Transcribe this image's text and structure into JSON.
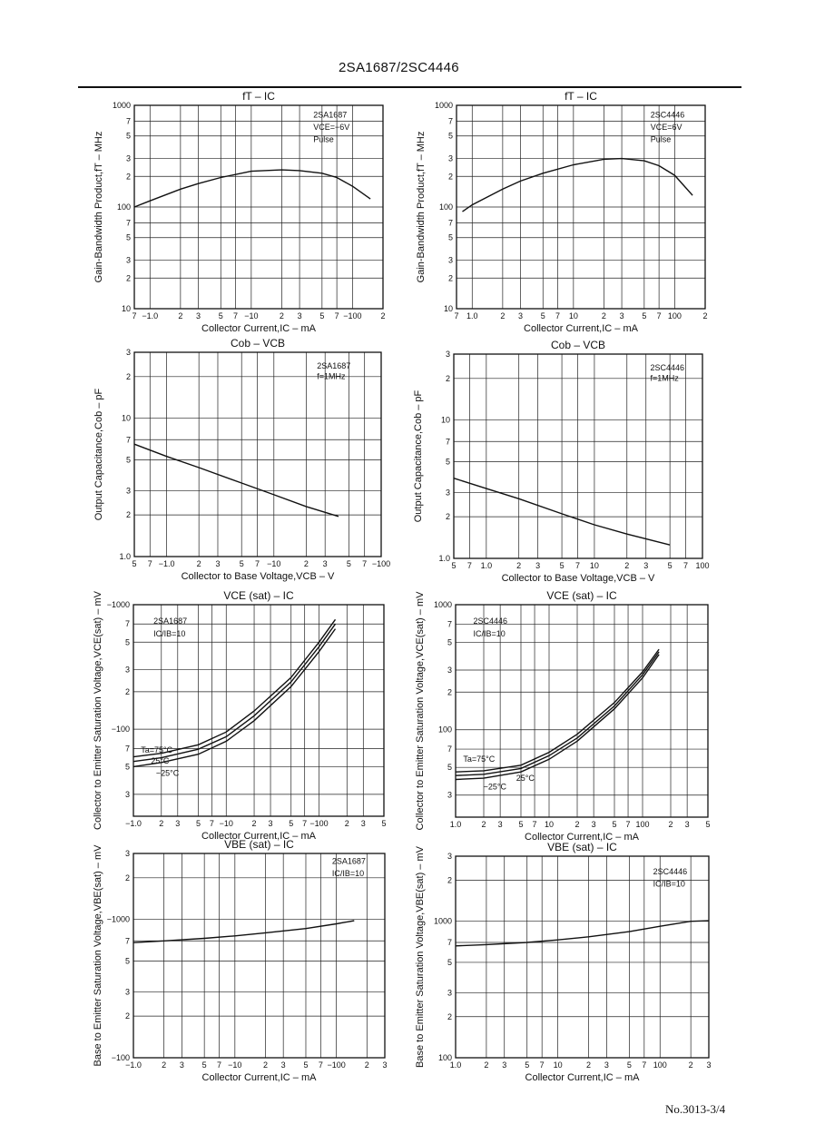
{
  "header": {
    "title": "2SA1687/2SC4446"
  },
  "footer": {
    "page_number": "No.3013-3/4"
  },
  "chart_data": [
    {
      "id": "ft-ic-2sa1687",
      "type": "line",
      "title": "fT  –  IC",
      "xlabel": "Collector Current,IC – mA",
      "ylabel": "Gain-Bandwidth Product,fT – MHz",
      "xscale": "log",
      "yscale": "log",
      "xlim": [
        -0.7,
        -200
      ],
      "ylim": [
        10,
        1000
      ],
      "xticks": [
        {
          "v": 0.7,
          "l": "7"
        },
        {
          "v": 1,
          "l": "−1.0"
        },
        {
          "v": 2,
          "l": "2"
        },
        {
          "v": 3,
          "l": "3"
        },
        {
          "v": 5,
          "l": "5"
        },
        {
          "v": 7,
          "l": "7"
        },
        {
          "v": 10,
          "l": "−10"
        },
        {
          "v": 20,
          "l": "2"
        },
        {
          "v": 30,
          "l": "3"
        },
        {
          "v": 50,
          "l": "5"
        },
        {
          "v": 70,
          "l": "7"
        },
        {
          "v": 100,
          "l": "−100"
        },
        {
          "v": 200,
          "l": "2"
        }
      ],
      "yticks": [
        {
          "v": 10,
          "l": "10"
        },
        {
          "v": 20,
          "l": "2"
        },
        {
          "v": 30,
          "l": "3"
        },
        {
          "v": 50,
          "l": "5"
        },
        {
          "v": 70,
          "l": "7"
        },
        {
          "v": 100,
          "l": "100"
        },
        {
          "v": 200,
          "l": "2"
        },
        {
          "v": 300,
          "l": "3"
        },
        {
          "v": 500,
          "l": "5"
        },
        {
          "v": 700,
          "l": "7"
        },
        {
          "v": 1000,
          "l": "1000"
        }
      ],
      "annotations": [
        "2SA1687",
        "VCE=−6V",
        "Pulse"
      ],
      "series": [
        {
          "x": [
            -0.7,
            -1,
            -2,
            -3,
            -5,
            -10,
            -20,
            -30,
            -50,
            -70,
            -100,
            -150
          ],
          "y": [
            100,
            115,
            150,
            170,
            195,
            225,
            232,
            228,
            215,
            195,
            160,
            120
          ]
        }
      ]
    },
    {
      "id": "ft-ic-2sc4446",
      "type": "line",
      "title": "fT  –  IC",
      "xlabel": "Collector Current,IC – mA",
      "ylabel": "Gain-Bandwidth Product,fT – MHz",
      "xscale": "log",
      "yscale": "log",
      "xlim": [
        0.7,
        200
      ],
      "ylim": [
        10,
        1000
      ],
      "xticks": [
        {
          "v": 0.7,
          "l": "7"
        },
        {
          "v": 1,
          "l": "1.0"
        },
        {
          "v": 2,
          "l": "2"
        },
        {
          "v": 3,
          "l": "3"
        },
        {
          "v": 5,
          "l": "5"
        },
        {
          "v": 7,
          "l": "7"
        },
        {
          "v": 10,
          "l": "10"
        },
        {
          "v": 20,
          "l": "2"
        },
        {
          "v": 30,
          "l": "3"
        },
        {
          "v": 50,
          "l": "5"
        },
        {
          "v": 70,
          "l": "7"
        },
        {
          "v": 100,
          "l": "100"
        },
        {
          "v": 200,
          "l": "2"
        }
      ],
      "yticks": [
        {
          "v": 10,
          "l": "10"
        },
        {
          "v": 20,
          "l": "2"
        },
        {
          "v": 30,
          "l": "3"
        },
        {
          "v": 50,
          "l": "5"
        },
        {
          "v": 70,
          "l": "7"
        },
        {
          "v": 100,
          "l": "100"
        },
        {
          "v": 200,
          "l": "2"
        },
        {
          "v": 300,
          "l": "3"
        },
        {
          "v": 500,
          "l": "5"
        },
        {
          "v": 700,
          "l": "7"
        },
        {
          "v": 1000,
          "l": "1000"
        }
      ],
      "annotations": [
        "2SC4446",
        "VCE=6V",
        "Pulse"
      ],
      "series": [
        {
          "x": [
            0.8,
            1,
            2,
            3,
            5,
            10,
            20,
            30,
            50,
            70,
            100,
            150
          ],
          "y": [
            90,
            105,
            150,
            180,
            215,
            260,
            295,
            300,
            285,
            255,
            205,
            130
          ]
        }
      ]
    },
    {
      "id": "cob-vcb-2sa1687",
      "type": "line",
      "title": "Cob  –  VCB",
      "xlabel": "Collector to Base Voltage,VCB – V",
      "ylabel": "Output Capacitance,Cob – pF",
      "xscale": "log",
      "yscale": "log",
      "xlim": [
        -0.5,
        -100
      ],
      "ylim": [
        1,
        30
      ],
      "xticks": [
        {
          "v": 0.5,
          "l": "5"
        },
        {
          "v": 0.7,
          "l": "7"
        },
        {
          "v": 1,
          "l": "−1.0"
        },
        {
          "v": 2,
          "l": "2"
        },
        {
          "v": 3,
          "l": "3"
        },
        {
          "v": 5,
          "l": "5"
        },
        {
          "v": 7,
          "l": "7"
        },
        {
          "v": 10,
          "l": "−10"
        },
        {
          "v": 20,
          "l": "2"
        },
        {
          "v": 30,
          "l": "3"
        },
        {
          "v": 50,
          "l": "5"
        },
        {
          "v": 70,
          "l": "7"
        },
        {
          "v": 100,
          "l": "−100"
        }
      ],
      "yticks": [
        {
          "v": 1,
          "l": "1.0"
        },
        {
          "v": 2,
          "l": "2"
        },
        {
          "v": 3,
          "l": "3"
        },
        {
          "v": 5,
          "l": "5"
        },
        {
          "v": 7,
          "l": "7"
        },
        {
          "v": 10,
          "l": "10"
        },
        {
          "v": 20,
          "l": "2"
        },
        {
          "v": 30,
          "l": "3"
        }
      ],
      "annotations": [
        "2SA1687",
        "f=1MHz"
      ],
      "series": [
        {
          "x": [
            -0.5,
            -1,
            -2,
            -5,
            -10,
            -20,
            -40
          ],
          "y": [
            6.5,
            5.3,
            4.4,
            3.4,
            2.8,
            2.3,
            1.95
          ]
        }
      ]
    },
    {
      "id": "cob-vcb-2sc4446",
      "type": "line",
      "title": "Cob  –  VCB",
      "xlabel": "Collector to Base Voltage,VCB – V",
      "ylabel": "Output Capacitance,Cob – pF",
      "xscale": "log",
      "yscale": "log",
      "xlim": [
        0.5,
        100
      ],
      "ylim": [
        1,
        30
      ],
      "xticks": [
        {
          "v": 0.5,
          "l": "5"
        },
        {
          "v": 0.7,
          "l": "7"
        },
        {
          "v": 1,
          "l": "1.0"
        },
        {
          "v": 2,
          "l": "2"
        },
        {
          "v": 3,
          "l": "3"
        },
        {
          "v": 5,
          "l": "5"
        },
        {
          "v": 7,
          "l": "7"
        },
        {
          "v": 10,
          "l": "10"
        },
        {
          "v": 20,
          "l": "2"
        },
        {
          "v": 30,
          "l": "3"
        },
        {
          "v": 50,
          "l": "5"
        },
        {
          "v": 70,
          "l": "7"
        },
        {
          "v": 100,
          "l": "100"
        }
      ],
      "yticks": [
        {
          "v": 1,
          "l": "1.0"
        },
        {
          "v": 2,
          "l": "2"
        },
        {
          "v": 3,
          "l": "3"
        },
        {
          "v": 5,
          "l": "5"
        },
        {
          "v": 7,
          "l": "7"
        },
        {
          "v": 10,
          "l": "10"
        },
        {
          "v": 20,
          "l": "2"
        },
        {
          "v": 30,
          "l": "3"
        }
      ],
      "annotations": [
        "2SC4446",
        "f=1MHz"
      ],
      "series": [
        {
          "x": [
            0.5,
            1,
            2,
            5,
            10,
            20,
            50
          ],
          "y": [
            3.8,
            3.2,
            2.7,
            2.1,
            1.75,
            1.5,
            1.25
          ]
        }
      ]
    },
    {
      "id": "vcesat-ic-2sa1687",
      "type": "line",
      "title": "VCE (sat)  –  IC",
      "xlabel": "Collector Current,IC – mA",
      "ylabel": "Collector to Emitter Saturation Voltage,VCE(sat) – mV",
      "xscale": "log",
      "yscale": "log",
      "xlim": [
        -1,
        -500
      ],
      "ylim": [
        -20,
        -1000
      ],
      "xticks": [
        {
          "v": 1,
          "l": "−1.0"
        },
        {
          "v": 2,
          "l": "2"
        },
        {
          "v": 3,
          "l": "3"
        },
        {
          "v": 5,
          "l": "5"
        },
        {
          "v": 7,
          "l": "7"
        },
        {
          "v": 10,
          "l": "−10"
        },
        {
          "v": 20,
          "l": "2"
        },
        {
          "v": 30,
          "l": "3"
        },
        {
          "v": 50,
          "l": "5"
        },
        {
          "v": 70,
          "l": "7"
        },
        {
          "v": 100,
          "l": "−100"
        },
        {
          "v": 200,
          "l": "2"
        },
        {
          "v": 300,
          "l": "3"
        },
        {
          "v": 500,
          "l": "5"
        }
      ],
      "yticks": [
        {
          "v": 30,
          "l": "3"
        },
        {
          "v": 50,
          "l": "5"
        },
        {
          "v": 70,
          "l": "7"
        },
        {
          "v": 100,
          "l": "−100"
        },
        {
          "v": 200,
          "l": "2"
        },
        {
          "v": 300,
          "l": "3"
        },
        {
          "v": 500,
          "l": "5"
        },
        {
          "v": 700,
          "l": "7"
        },
        {
          "v": 1000,
          "l": "−1000"
        }
      ],
      "annotations": [
        "2SA1687",
        "IC/IB=10",
        "Ta=75°C",
        "25°C",
        "−25°C"
      ],
      "series": [
        {
          "name": "Ta=75°C",
          "x": [
            -1,
            -2,
            -5,
            -10,
            -20,
            -50,
            -100,
            -150
          ],
          "y": [
            -60,
            -64,
            -75,
            -95,
            -140,
            -260,
            -500,
            -760
          ]
        },
        {
          "name": "25°C",
          "x": [
            -1,
            -2,
            -5,
            -10,
            -20,
            -50,
            -100,
            -150
          ],
          "y": [
            -55,
            -59,
            -69,
            -87,
            -128,
            -240,
            -460,
            -700
          ]
        },
        {
          "name": "−25°C",
          "x": [
            -1,
            -2,
            -5,
            -10,
            -20,
            -50,
            -100,
            -150
          ],
          "y": [
            -50,
            -54,
            -63,
            -80,
            -117,
            -220,
            -420,
            -640
          ]
        }
      ]
    },
    {
      "id": "vcesat-ic-2sc4446",
      "type": "line",
      "title": "VCE (sat)  –  IC",
      "xlabel": "Collector Current,IC – mA",
      "ylabel": "Collector to Emitter Saturation Voltage,VCE(sat) – mV",
      "xscale": "log",
      "yscale": "log",
      "xlim": [
        1,
        500
      ],
      "ylim": [
        20,
        1000
      ],
      "xticks": [
        {
          "v": 1,
          "l": "1.0"
        },
        {
          "v": 2,
          "l": "2"
        },
        {
          "v": 3,
          "l": "3"
        },
        {
          "v": 5,
          "l": "5"
        },
        {
          "v": 7,
          "l": "7"
        },
        {
          "v": 10,
          "l": "10"
        },
        {
          "v": 20,
          "l": "2"
        },
        {
          "v": 30,
          "l": "3"
        },
        {
          "v": 50,
          "l": "5"
        },
        {
          "v": 70,
          "l": "7"
        },
        {
          "v": 100,
          "l": "100"
        },
        {
          "v": 200,
          "l": "2"
        },
        {
          "v": 300,
          "l": "3"
        },
        {
          "v": 500,
          "l": "5"
        }
      ],
      "yticks": [
        {
          "v": 30,
          "l": "3"
        },
        {
          "v": 50,
          "l": "5"
        },
        {
          "v": 70,
          "l": "7"
        },
        {
          "v": 100,
          "l": "100"
        },
        {
          "v": 200,
          "l": "2"
        },
        {
          "v": 300,
          "l": "3"
        },
        {
          "v": 500,
          "l": "5"
        },
        {
          "v": 700,
          "l": "7"
        },
        {
          "v": 1000,
          "l": "1000"
        }
      ],
      "annotations": [
        "2SC4446",
        "IC/IB=10",
        "Ta=75°C",
        "25°C",
        "−25°C"
      ],
      "series": [
        {
          "name": "Ta=75°C",
          "x": [
            1,
            2,
            5,
            10,
            20,
            50,
            100,
            150
          ],
          "y": [
            46,
            47,
            52,
            66,
            92,
            165,
            290,
            440
          ]
        },
        {
          "name": "25°C",
          "x": [
            1,
            2,
            5,
            10,
            20,
            50,
            100,
            150
          ],
          "y": [
            43,
            44,
            49,
            62,
            86,
            155,
            275,
            420
          ]
        },
        {
          "name": "−25°C",
          "x": [
            1,
            2,
            5,
            10,
            20,
            50,
            100,
            150
          ],
          "y": [
            40,
            41,
            46,
            58,
            81,
            147,
            260,
            400
          ]
        }
      ]
    },
    {
      "id": "vbesat-ic-2sa1687",
      "type": "line",
      "title": "VBE (sat)  –  IC",
      "xlabel": "Collector Current,IC – mA",
      "ylabel": "Base to Emitter Saturation Voltage,VBE(sat) – mV",
      "xscale": "log",
      "yscale": "log",
      "xlim": [
        -1,
        -300
      ],
      "ylim": [
        -100,
        -3000
      ],
      "xticks": [
        {
          "v": 1,
          "l": "−1.0"
        },
        {
          "v": 2,
          "l": "2"
        },
        {
          "v": 3,
          "l": "3"
        },
        {
          "v": 5,
          "l": "5"
        },
        {
          "v": 7,
          "l": "7"
        },
        {
          "v": 10,
          "l": "−10"
        },
        {
          "v": 20,
          "l": "2"
        },
        {
          "v": 30,
          "l": "3"
        },
        {
          "v": 50,
          "l": "5"
        },
        {
          "v": 70,
          "l": "7"
        },
        {
          "v": 100,
          "l": "−100"
        },
        {
          "v": 200,
          "l": "2"
        },
        {
          "v": 300,
          "l": "3"
        }
      ],
      "yticks": [
        {
          "v": 100,
          "l": "−100"
        },
        {
          "v": 200,
          "l": "2"
        },
        {
          "v": 300,
          "l": "3"
        },
        {
          "v": 500,
          "l": "5"
        },
        {
          "v": 700,
          "l": "7"
        },
        {
          "v": 1000,
          "l": "−1000"
        },
        {
          "v": 2000,
          "l": "2"
        },
        {
          "v": 3000,
          "l": "3"
        }
      ],
      "annotations": [
        "2SA1687",
        "IC/IB=10"
      ],
      "series": [
        {
          "x": [
            -1,
            -2,
            -5,
            -10,
            -20,
            -50,
            -100,
            -150
          ],
          "y": [
            -680,
            -700,
            -730,
            -760,
            -800,
            -860,
            -930,
            -980
          ]
        }
      ]
    },
    {
      "id": "vbesat-ic-2sc4446",
      "type": "line",
      "title": "VBE (sat)  –  IC",
      "xlabel": "Collector Current,IC – mA",
      "ylabel": "Base to Emitter Saturation Voltage,VBE(sat) – mV",
      "xscale": "log",
      "yscale": "log",
      "xlim": [
        1,
        300
      ],
      "ylim": [
        100,
        3000
      ],
      "xticks": [
        {
          "v": 1,
          "l": "1.0"
        },
        {
          "v": 2,
          "l": "2"
        },
        {
          "v": 3,
          "l": "3"
        },
        {
          "v": 5,
          "l": "5"
        },
        {
          "v": 7,
          "l": "7"
        },
        {
          "v": 10,
          "l": "10"
        },
        {
          "v": 20,
          "l": "2"
        },
        {
          "v": 30,
          "l": "3"
        },
        {
          "v": 50,
          "l": "5"
        },
        {
          "v": 70,
          "l": "7"
        },
        {
          "v": 100,
          "l": "100"
        },
        {
          "v": 200,
          "l": "2"
        },
        {
          "v": 300,
          "l": "3"
        }
      ],
      "yticks": [
        {
          "v": 100,
          "l": "100"
        },
        {
          "v": 200,
          "l": "2"
        },
        {
          "v": 300,
          "l": "3"
        },
        {
          "v": 500,
          "l": "5"
        },
        {
          "v": 700,
          "l": "7"
        },
        {
          "v": 1000,
          "l": "1000"
        },
        {
          "v": 2000,
          "l": "2"
        },
        {
          "v": 3000,
          "l": "3"
        }
      ],
      "annotations": [
        "2SC4446",
        "IC/IB=10"
      ],
      "series": [
        {
          "x": [
            1,
            2,
            5,
            10,
            20,
            50,
            100,
            200,
            300
          ],
          "y": [
            660,
            675,
            700,
            730,
            770,
            840,
            920,
            1000,
            1010
          ]
        }
      ]
    }
  ]
}
